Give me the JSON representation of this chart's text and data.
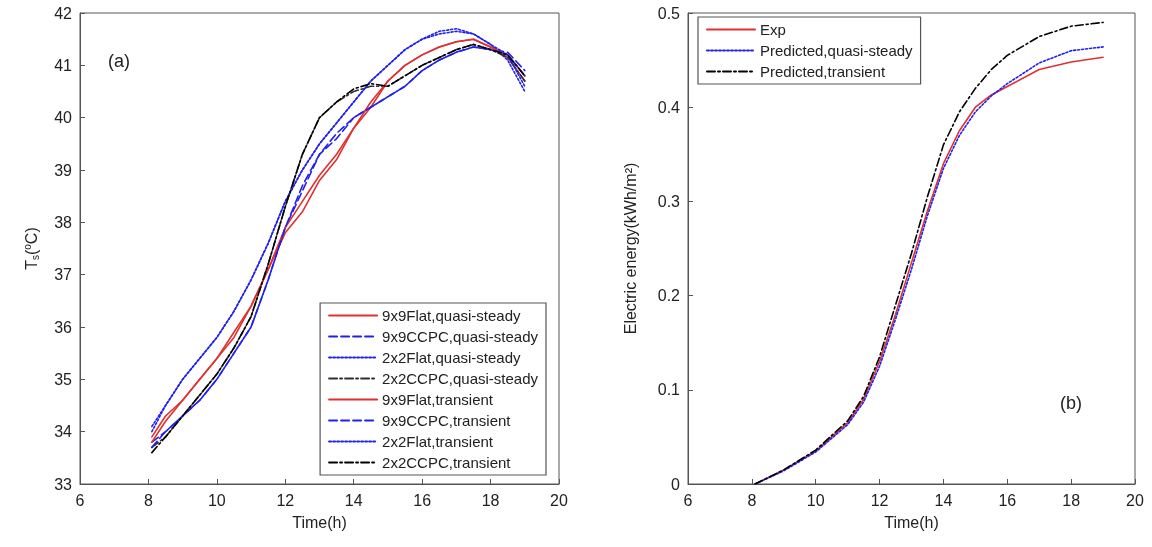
{
  "chart_data": [
    {
      "type": "line",
      "xlabel": "Time(h)",
      "ylabel": "T$_{s}$($^{o}$C)",
      "annotations": [
        "(a)"
      ],
      "xlim": [
        6,
        20
      ],
      "xticks": [
        6,
        8,
        10,
        12,
        14,
        16,
        18,
        20
      ],
      "ylim": [
        33,
        42
      ],
      "yticks": [
        33,
        34,
        35,
        36,
        37,
        38,
        39,
        40,
        41,
        42
      ],
      "grid": false,
      "legend": "bottom right",
      "marker": "none",
      "x": [
        8.1,
        8.5,
        9,
        9.5,
        10,
        10.5,
        11,
        11.5,
        12,
        12.5,
        13,
        13.5,
        14,
        14.5,
        15,
        15.5,
        16,
        16.5,
        17,
        17.5,
        18,
        18.5,
        19
      ],
      "series": [
        {
          "name": "9x9Flat,quasi-steady",
          "color": "#e03030",
          "line_style": "solid",
          "values": [
            33.9,
            34.3,
            34.6,
            35.0,
            35.4,
            35.9,
            36.4,
            37.1,
            37.8,
            38.2,
            38.8,
            39.2,
            39.8,
            40.2,
            40.7,
            41.0,
            41.2,
            41.35,
            41.45,
            41.5,
            41.35,
            41.15,
            40.7
          ]
        },
        {
          "name": "9x9CCPC,quasi-steady",
          "color": "#2020f0",
          "line_style": "dashed",
          "values": [
            33.8,
            34.0,
            34.3,
            34.6,
            35.0,
            35.5,
            36.0,
            36.9,
            37.9,
            38.6,
            39.3,
            39.6,
            40.0,
            40.2,
            40.4,
            40.6,
            40.9,
            41.1,
            41.25,
            41.35,
            41.3,
            41.25,
            40.9
          ]
        },
        {
          "name": "2x2Flat,quasi-steady",
          "color": "#2020f0",
          "line_style": "dotted",
          "values": [
            34.1,
            34.5,
            35.0,
            35.4,
            35.8,
            36.3,
            36.9,
            37.6,
            38.4,
            39.0,
            39.5,
            39.9,
            40.3,
            40.7,
            41.0,
            41.3,
            41.5,
            41.65,
            41.7,
            41.6,
            41.4,
            41.1,
            40.5
          ]
        },
        {
          "name": "2x2CCPC,quasi-steady",
          "color": "#303030",
          "line_style": "dashdot",
          "values": [
            33.7,
            33.9,
            34.3,
            34.7,
            35.1,
            35.6,
            36.2,
            37.2,
            38.3,
            39.3,
            40.0,
            40.3,
            40.5,
            40.6,
            40.6,
            40.8,
            41.0,
            41.15,
            41.3,
            41.4,
            41.3,
            41.15,
            40.7
          ]
        },
        {
          "name": "9x9Flat,transient",
          "color": "#e03030",
          "line_style": "solid",
          "values": [
            33.8,
            34.2,
            34.6,
            35.0,
            35.4,
            35.8,
            36.4,
            37.1,
            37.9,
            38.4,
            38.9,
            39.3,
            39.8,
            40.3,
            40.7,
            41.0,
            41.2,
            41.35,
            41.45,
            41.5,
            41.35,
            41.2,
            40.8
          ]
        },
        {
          "name": "9x9CCPC,transient",
          "color": "#2020f0",
          "line_style": "dashed",
          "values": [
            33.7,
            34.0,
            34.3,
            34.6,
            35.0,
            35.5,
            36.0,
            36.9,
            37.9,
            38.7,
            39.3,
            39.7,
            40.0,
            40.2,
            40.4,
            40.6,
            40.9,
            41.1,
            41.25,
            41.35,
            41.3,
            41.2,
            40.8
          ]
        },
        {
          "name": "2x2Flat,transient",
          "color": "#2020f0",
          "line_style": "dotted",
          "values": [
            34.0,
            34.5,
            35.0,
            35.4,
            35.8,
            36.3,
            36.9,
            37.6,
            38.4,
            39.0,
            39.5,
            39.9,
            40.3,
            40.7,
            41.0,
            41.3,
            41.5,
            41.6,
            41.65,
            41.6,
            41.4,
            41.2,
            40.6
          ]
        },
        {
          "name": "2x2CCPC,transient",
          "color": "#000000",
          "line_style": "dashdot",
          "values": [
            33.6,
            33.9,
            34.3,
            34.7,
            35.1,
            35.6,
            36.2,
            37.2,
            38.3,
            39.3,
            40.0,
            40.3,
            40.55,
            40.65,
            40.6,
            40.8,
            41.0,
            41.15,
            41.3,
            41.4,
            41.3,
            41.2,
            40.8
          ]
        }
      ]
    },
    {
      "type": "line",
      "xlabel": "Time(h)",
      "ylabel": "Electric energy(kWh/m²)",
      "annotations": [
        "(b)"
      ],
      "xlim": [
        6,
        20
      ],
      "xticks": [
        6,
        8,
        10,
        12,
        14,
        16,
        18,
        20
      ],
      "ylim": [
        0,
        0.5
      ],
      "yticks": [
        0,
        0.1,
        0.2,
        0.3,
        0.4,
        0.5
      ],
      "grid": false,
      "legend": "top left",
      "marker": "none",
      "x": [
        8.1,
        9,
        10,
        11,
        11.5,
        12,
        12.5,
        13,
        13.5,
        14,
        14.5,
        15,
        15.5,
        16,
        17,
        18,
        19
      ],
      "series": [
        {
          "name": "Exp",
          "color": "#e03030",
          "line_style": "solid",
          "values": [
            0,
            0.015,
            0.035,
            0.065,
            0.09,
            0.13,
            0.18,
            0.235,
            0.29,
            0.34,
            0.375,
            0.4,
            0.413,
            0.422,
            0.44,
            0.448,
            0.453
          ]
        },
        {
          "name": "Predicted,quasi-steady",
          "color": "#2020f0",
          "line_style": "dotted",
          "values": [
            0,
            0.014,
            0.034,
            0.063,
            0.087,
            0.125,
            0.175,
            0.228,
            0.285,
            0.335,
            0.37,
            0.395,
            0.412,
            0.425,
            0.447,
            0.46,
            0.464
          ]
        },
        {
          "name": "Predicted,transient",
          "color": "#000000",
          "line_style": "dashdot",
          "values": [
            0,
            0.015,
            0.036,
            0.067,
            0.093,
            0.135,
            0.19,
            0.245,
            0.305,
            0.36,
            0.395,
            0.42,
            0.44,
            0.455,
            0.475,
            0.486,
            0.49
          ]
        }
      ]
    }
  ]
}
